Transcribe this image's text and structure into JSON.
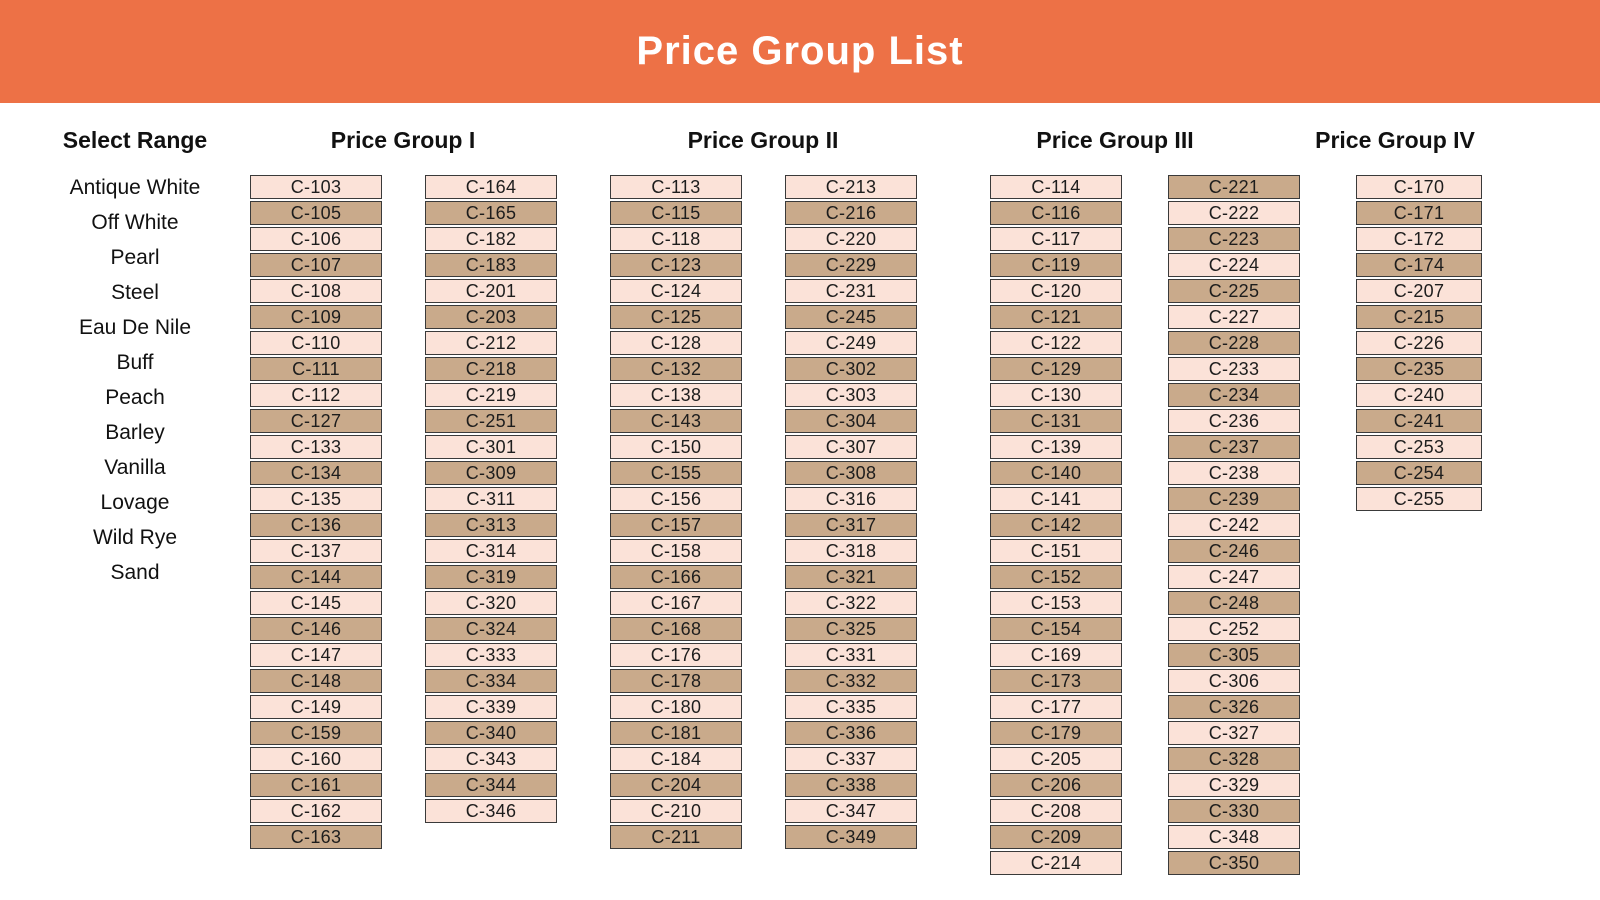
{
  "header": {
    "title": "Price Group List"
  },
  "colors": {
    "orange": "#ED7146",
    "pink": "#FBE2D8",
    "tan": "#C9AA8B",
    "text": "#1D1D1D",
    "cell_border": "#3A3A3A"
  },
  "select_range": {
    "label": "Select Range",
    "items": [
      "Antique White",
      "Off White",
      "Pearl",
      "Steel",
      "Eau De Nile",
      "Buff",
      "Peach",
      "Barley",
      "Vanilla",
      "Lovage",
      "Wild Rye",
      "Sand"
    ]
  },
  "groups": [
    {
      "label": "Price Group I",
      "columns": [
        {
          "first_shade": "pink",
          "codes": [
            "C-103",
            "C-105",
            "C-106",
            "C-107",
            "C-108",
            "C-109",
            "C-110",
            "C-111",
            "C-112",
            "C-127",
            "C-133",
            "C-134",
            "C-135",
            "C-136",
            "C-137",
            "C-144",
            "C-145",
            "C-146",
            "C-147",
            "C-148",
            "C-149",
            "C-159",
            "C-160",
            "C-161",
            "C-162",
            "C-163"
          ]
        },
        {
          "first_shade": "pink",
          "codes": [
            "C-164",
            "C-165",
            "C-182",
            "C-183",
            "C-201",
            "C-203",
            "C-212",
            "C-218",
            "C-219",
            "C-251",
            "C-301",
            "C-309",
            "C-311",
            "C-313",
            "C-314",
            "C-319",
            "C-320",
            "C-324",
            "C-333",
            "C-334",
            "C-339",
            "C-340",
            "C-343",
            "C-344",
            "C-346"
          ]
        }
      ]
    },
    {
      "label": "Price Group II",
      "columns": [
        {
          "first_shade": "pink",
          "codes": [
            "C-113",
            "C-115",
            "C-118",
            "C-123",
            "C-124",
            "C-125",
            "C-128",
            "C-132",
            "C-138",
            "C-143",
            "C-150",
            "C-155",
            "C-156",
            "C-157",
            "C-158",
            "C-166",
            "C-167",
            "C-168",
            "C-176",
            "C-178",
            "C-180",
            "C-181",
            "C-184",
            "C-204",
            "C-210",
            "C-211"
          ]
        },
        {
          "first_shade": "pink",
          "codes": [
            "C-213",
            "C-216",
            "C-220",
            "C-229",
            "C-231",
            "C-245",
            "C-249",
            "C-302",
            "C-303",
            "C-304",
            "C-307",
            "C-308",
            "C-316",
            "C-317",
            "C-318",
            "C-321",
            "C-322",
            "C-325",
            "C-331",
            "C-332",
            "C-335",
            "C-336",
            "C-337",
            "C-338",
            "C-347",
            "C-349"
          ]
        }
      ]
    },
    {
      "label": "Price Group III",
      "columns": [
        {
          "first_shade": "pink",
          "codes": [
            "C-114",
            "C-116",
            "C-117",
            "C-119",
            "C-120",
            "C-121",
            "C-122",
            "C-129",
            "C-130",
            "C-131",
            "C-139",
            "C-140",
            "C-141",
            "C-142",
            "C-151",
            "C-152",
            "C-153",
            "C-154",
            "C-169",
            "C-173",
            "C-177",
            "C-179",
            "C-205",
            "C-206",
            "C-208",
            "C-209",
            "C-214"
          ]
        },
        {
          "first_shade": "tan",
          "codes": [
            "C-221",
            "C-222",
            "C-223",
            "C-224",
            "C-225",
            "C-227",
            "C-228",
            "C-233",
            "C-234",
            "C-236",
            "C-237",
            "C-238",
            "C-239",
            "C-242",
            "C-246",
            "C-247",
            "C-248",
            "C-252",
            "C-305",
            "C-306",
            "C-326",
            "C-327",
            "C-328",
            "C-329",
            "C-330",
            "C-348",
            "C-350"
          ]
        }
      ]
    },
    {
      "label": "Price Group IV",
      "columns": [
        {
          "first_shade": "pink",
          "codes": [
            "C-170",
            "C-171",
            "C-172",
            "C-174",
            "C-207",
            "C-215",
            "C-226",
            "C-235",
            "C-240",
            "C-241",
            "C-253",
            "C-254",
            "C-255"
          ]
        }
      ]
    }
  ]
}
